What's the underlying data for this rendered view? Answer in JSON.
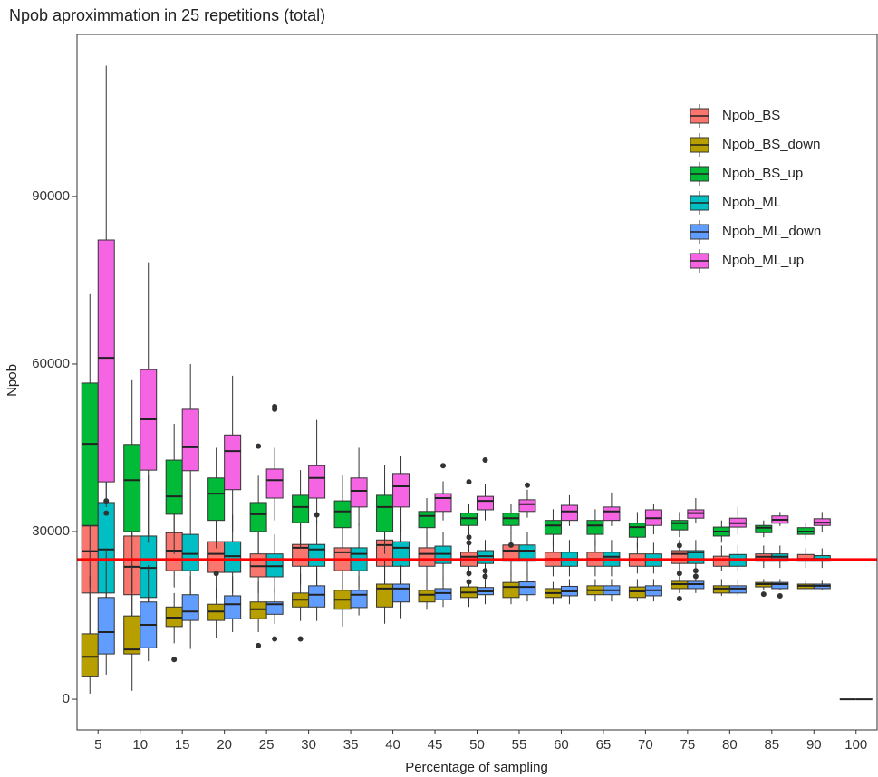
{
  "chart_data": {
    "type": "boxplot",
    "title": "Npob aproximmation in 25 repetitions (total)",
    "x_label": "Percentage of sampling",
    "y_label": "Npob",
    "categories": [
      "5",
      "10",
      "15",
      "20",
      "25",
      "30",
      "35",
      "40",
      "45",
      "50",
      "55",
      "60",
      "65",
      "70",
      "75",
      "80",
      "85",
      "90",
      "100"
    ],
    "ylim": [
      -5500,
      119000
    ],
    "yticks": [
      0,
      30000,
      60000,
      90000
    ],
    "legend": "top-right",
    "reference_line": {
      "value": 25000,
      "color": "#ff0000"
    },
    "series": [
      {
        "name": "Npob_BS",
        "color": "#F8766D",
        "group": "BS",
        "values": [
          [
            4000,
            19000,
            26500,
            31000,
            48000
          ],
          [
            12000,
            18700,
            23700,
            29200,
            40000
          ],
          [
            20000,
            23000,
            26600,
            29800,
            34000
          ],
          [
            18000,
            22700,
            26000,
            28200,
            33000
          ],
          [
            19000,
            21900,
            23800,
            26000,
            30000
          ],
          [
            20500,
            23800,
            27100,
            27700,
            32000
          ],
          [
            19500,
            23000,
            26300,
            27100,
            31500
          ],
          [
            19500,
            23800,
            27600,
            28500,
            32000
          ],
          [
            21000,
            23800,
            26000,
            27100,
            30000
          ],
          [
            22000,
            23800,
            25500,
            26300,
            28500
          ],
          [
            22000,
            24700,
            26600,
            27600,
            30000
          ],
          [
            22000,
            23800,
            25100,
            26300,
            28500
          ],
          [
            22000,
            23800,
            25100,
            26300,
            28500
          ],
          [
            22500,
            23800,
            25000,
            26000,
            28000
          ],
          [
            22500,
            24300,
            26000,
            26600,
            28500
          ],
          [
            23000,
            23800,
            25000,
            25600,
            27500
          ],
          [
            23500,
            24700,
            25500,
            26000,
            27500
          ],
          [
            23500,
            24700,
            25100,
            25900,
            27000
          ],
          [
            25000,
            25000,
            25000,
            25000,
            25000
          ]
        ],
        "outliers": [
          [],
          [],
          [],
          [],
          [
            45300
          ],
          [],
          [],
          [],
          [],
          [
            38900,
            22500,
            21000
          ],
          [],
          [],
          [],
          [],
          [
            22500,
            27500
          ],
          [],
          [],
          [],
          []
        ]
      },
      {
        "name": "Npob_BS_down",
        "color": "#B79F00",
        "group": "BS",
        "values": [
          [
            1000,
            4000,
            7600,
            11700,
            22000
          ],
          [
            1500,
            8100,
            8900,
            14900,
            24000
          ],
          [
            10000,
            13000,
            14600,
            16500,
            19000
          ],
          [
            11000,
            14100,
            15700,
            17000,
            20000
          ],
          [
            12000,
            14400,
            16100,
            17400,
            21000
          ],
          [
            14000,
            16500,
            17800,
            19000,
            22500
          ],
          [
            13000,
            16100,
            17800,
            19500,
            23000
          ],
          [
            13500,
            16500,
            19800,
            20600,
            25000
          ],
          [
            16000,
            17400,
            18700,
            19500,
            21500
          ],
          [
            16500,
            18200,
            19100,
            20100,
            21500
          ],
          [
            17000,
            18200,
            20100,
            20900,
            23000
          ],
          [
            17000,
            18200,
            19000,
            19800,
            21000
          ],
          [
            17500,
            18700,
            19500,
            20300,
            21500
          ],
          [
            17500,
            18200,
            19300,
            20100,
            21500
          ],
          [
            19000,
            19800,
            20600,
            21100,
            22000
          ],
          [
            18500,
            19000,
            19800,
            20300,
            21500
          ],
          [
            19500,
            20100,
            20600,
            20900,
            21500
          ],
          [
            19500,
            19800,
            20300,
            20600,
            21200
          ],
          [
            0,
            0,
            0,
            0,
            0
          ]
        ],
        "outliers": [
          [],
          [],
          [
            7100
          ],
          [
            22500
          ],
          [
            9600
          ],
          [
            10800
          ],
          [],
          [],
          [],
          [],
          [],
          [],
          [],
          [],
          [
            18000
          ],
          [],
          [
            18800
          ],
          [],
          []
        ]
      },
      {
        "name": "Npob_BS_up",
        "color": "#00BA38",
        "group": "BS",
        "values": [
          [
            20000,
            31100,
            45700,
            56600,
            72500
          ],
          [
            19000,
            30000,
            39200,
            45600,
            57100
          ],
          [
            26000,
            33100,
            36300,
            42800,
            49300
          ],
          [
            27000,
            32000,
            36800,
            39600,
            45000
          ],
          [
            26000,
            30000,
            33100,
            35200,
            40000
          ],
          [
            27000,
            31600,
            34400,
            36500,
            41000
          ],
          [
            27000,
            30700,
            33600,
            35500,
            40000
          ],
          [
            26000,
            30000,
            34400,
            36500,
            42000
          ],
          [
            28000,
            30700,
            32800,
            33600,
            36000
          ],
          [
            29500,
            31100,
            32400,
            33300,
            35000
          ],
          [
            29500,
            31100,
            32400,
            33300,
            35000
          ],
          [
            27500,
            29500,
            31100,
            32000,
            34000
          ],
          [
            27500,
            29500,
            31100,
            32000,
            34000
          ],
          [
            27000,
            29000,
            30800,
            31500,
            33500
          ],
          [
            29000,
            30300,
            31500,
            32000,
            33500
          ],
          [
            28000,
            29200,
            30000,
            30800,
            32000
          ],
          [
            29000,
            29800,
            30700,
            31100,
            32000
          ],
          [
            28800,
            29500,
            30000,
            30700,
            31500
          ],
          [
            25000,
            25000,
            25000,
            25000,
            25000
          ]
        ],
        "outliers": [
          [],
          [],
          [],
          [],
          [],
          [],
          [],
          [],
          [],
          [
            29000,
            28000
          ],
          [
            27600
          ],
          [],
          [],
          [],
          [],
          [],
          [],
          [],
          []
        ]
      },
      {
        "name": "Npob_ML",
        "color": "#00BFC4",
        "group": "ML",
        "values": [
          [
            10000,
            19000,
            26800,
            35200,
            48000
          ],
          [
            12000,
            18200,
            23500,
            29200,
            40000
          ],
          [
            18000,
            23000,
            26000,
            29500,
            35000
          ],
          [
            19000,
            22700,
            25600,
            28200,
            33000
          ],
          [
            19000,
            21900,
            23800,
            26000,
            29500
          ],
          [
            20000,
            23800,
            26800,
            27700,
            32000
          ],
          [
            20000,
            23000,
            26000,
            27100,
            31500
          ],
          [
            20000,
            23800,
            27100,
            28200,
            32000
          ],
          [
            21000,
            24300,
            26000,
            27400,
            30000
          ],
          [
            22000,
            24300,
            25600,
            26600,
            28500
          ],
          [
            22000,
            24700,
            26600,
            27600,
            30000
          ],
          [
            22000,
            23800,
            25100,
            26300,
            28500
          ],
          [
            22000,
            23800,
            25500,
            26300,
            28500
          ],
          [
            22500,
            23800,
            25000,
            26000,
            28000
          ],
          [
            22500,
            24300,
            26300,
            26600,
            28500
          ],
          [
            23000,
            23800,
            25000,
            25900,
            27500
          ],
          [
            23500,
            24700,
            25500,
            26000,
            27500
          ],
          [
            23500,
            24700,
            25100,
            25700,
            27000
          ],
          [
            25000,
            25000,
            25000,
            25000,
            25000
          ]
        ],
        "outliers": [
          [
            35500,
            33300
          ],
          [],
          [],
          [],
          [],
          [
            33000
          ],
          [],
          [],
          [],
          [
            22000,
            23000
          ],
          [],
          [],
          [],
          [],
          [
            23000,
            22000
          ],
          [],
          [],
          [],
          []
        ]
      },
      {
        "name": "Npob_ML_down",
        "color": "#619CFF",
        "group": "ML",
        "values": [
          [
            4400,
            8100,
            12000,
            18200,
            27000
          ],
          [
            6800,
            9200,
            13300,
            17400,
            24000
          ],
          [
            9000,
            14100,
            15700,
            18700,
            22000
          ],
          [
            12000,
            14400,
            17000,
            18500,
            22000
          ],
          [
            13500,
            15200,
            17000,
            17400,
            20000
          ],
          [
            14000,
            16500,
            18700,
            20300,
            23500
          ],
          [
            15000,
            16400,
            18700,
            19500,
            22000
          ],
          [
            14500,
            17400,
            19800,
            20600,
            24000
          ],
          [
            16500,
            17800,
            19000,
            19800,
            22000
          ],
          [
            17000,
            18700,
            19300,
            20000,
            21500
          ],
          [
            17500,
            18700,
            20100,
            21000,
            23000
          ],
          [
            17000,
            18500,
            19300,
            20200,
            21500
          ],
          [
            17500,
            18700,
            19500,
            20300,
            21500
          ],
          [
            17500,
            18500,
            19500,
            20300,
            21500
          ],
          [
            19000,
            19800,
            20600,
            21100,
            22000
          ],
          [
            18500,
            19000,
            19800,
            20300,
            21500
          ],
          [
            19500,
            19800,
            20600,
            20900,
            21500
          ],
          [
            19500,
            19800,
            20300,
            20600,
            21200
          ],
          [
            0,
            0,
            0,
            0,
            0
          ]
        ],
        "outliers": [
          [],
          [],
          [],
          [],
          [
            10800
          ],
          [],
          [],
          [],
          [],
          [],
          [],
          [],
          [],
          [],
          [],
          [],
          [
            18500
          ],
          [],
          []
        ]
      },
      {
        "name": "Npob_ML_up",
        "color": "#F564E3",
        "group": "ML",
        "values": [
          [
            34400,
            38900,
            61100,
            82200,
            113400
          ],
          [
            28000,
            41000,
            50100,
            59000,
            78200
          ],
          [
            35000,
            40900,
            45100,
            51900,
            60000
          ],
          [
            30000,
            37500,
            44400,
            47300,
            57900
          ],
          [
            32000,
            36000,
            39200,
            41200,
            45000
          ],
          [
            31500,
            36000,
            39600,
            41800,
            50000
          ],
          [
            31000,
            34400,
            37300,
            39600,
            45000
          ],
          [
            30000,
            34400,
            38100,
            40400,
            43500
          ],
          [
            32000,
            33600,
            36000,
            36800,
            39000
          ],
          [
            32000,
            33900,
            35500,
            36300,
            38500
          ],
          [
            32500,
            33600,
            34900,
            35700,
            37500
          ],
          [
            31000,
            32000,
            33600,
            34700,
            36500
          ],
          [
            31000,
            32000,
            33600,
            34400,
            37000
          ],
          [
            29500,
            31100,
            32400,
            33900,
            35000
          ],
          [
            31500,
            32400,
            33300,
            33900,
            36000
          ],
          [
            29500,
            30800,
            31500,
            32400,
            34500
          ],
          [
            31000,
            31500,
            32100,
            32800,
            33500
          ],
          [
            30000,
            31100,
            31600,
            32300,
            33500
          ],
          [
            25000,
            25000,
            25000,
            25000,
            25000
          ]
        ],
        "outliers": [
          [],
          [],
          [],
          [],
          [
            52400,
            51900
          ],
          [],
          [],
          [],
          [
            41800
          ],
          [
            42800
          ],
          [
            38300
          ],
          [],
          [],
          [],
          [],
          [],
          [],
          [],
          []
        ]
      }
    ]
  }
}
